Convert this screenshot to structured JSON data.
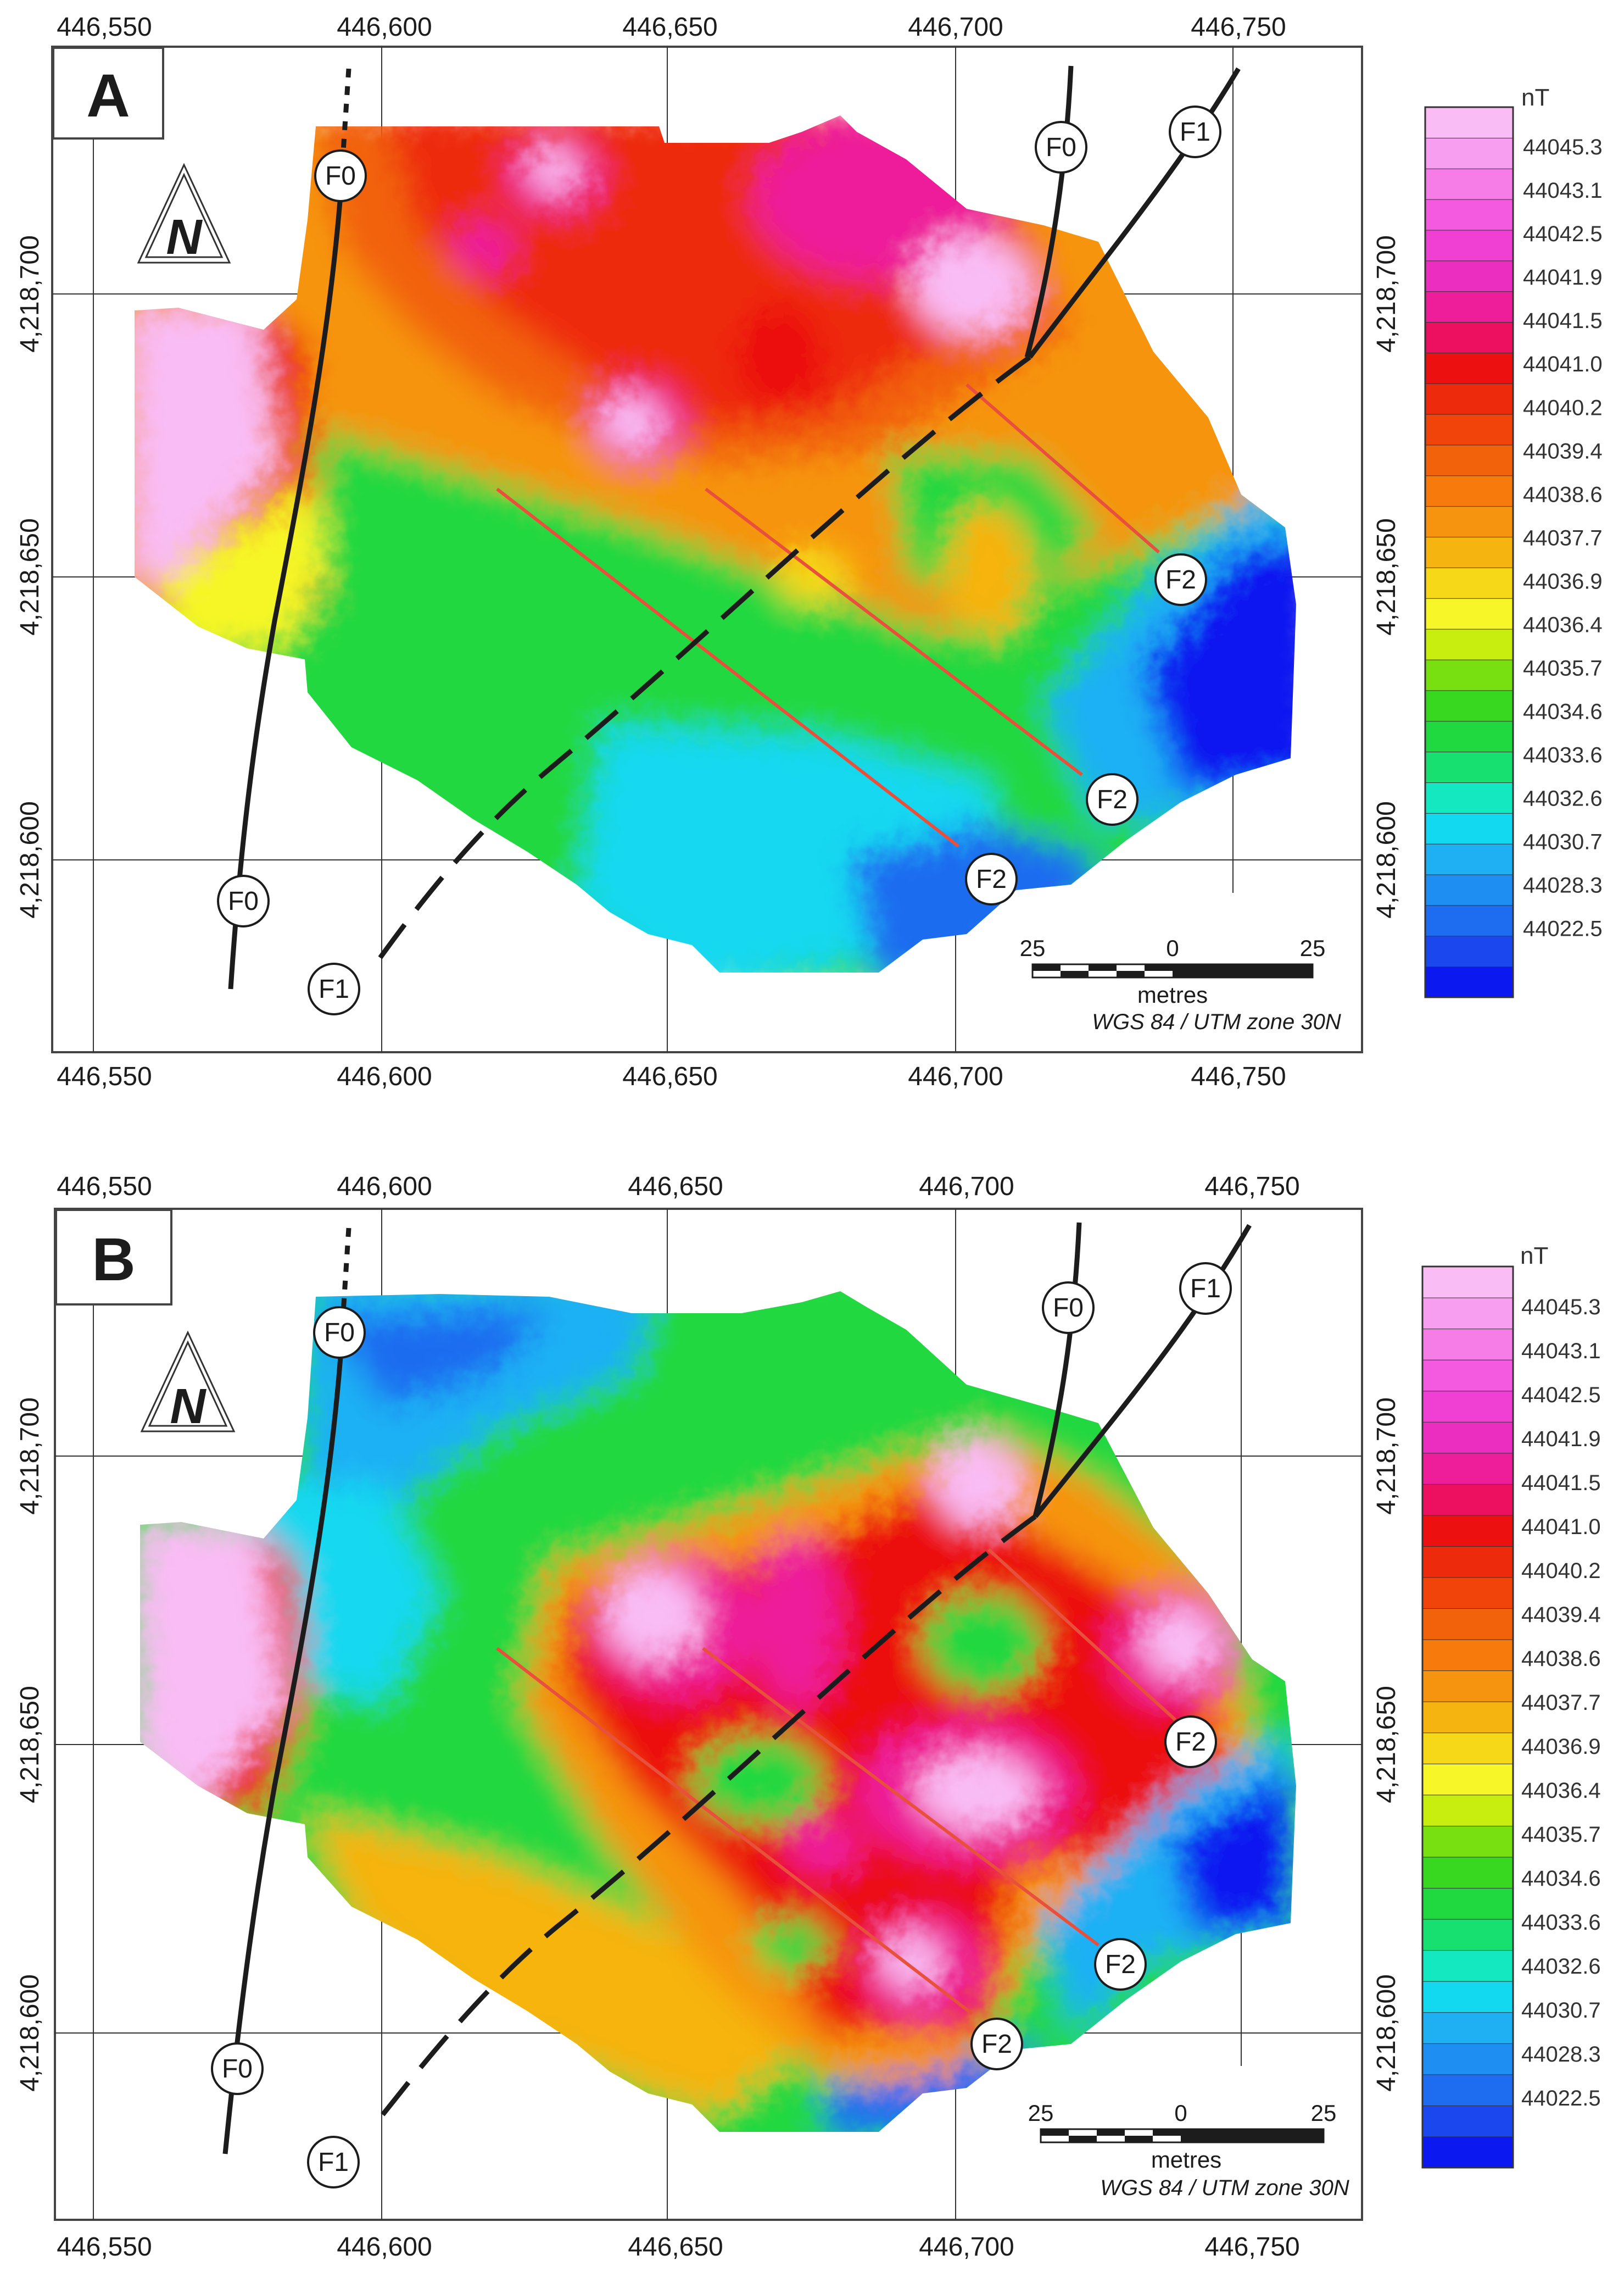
{
  "panels": [
    {
      "label": "A",
      "faults": {
        "f0_top": "F0",
        "f0_bottom": "F0",
        "f0_right": "F0",
        "f1_top": "F1",
        "f1_bottom": "F1",
        "f2_a": "F2",
        "f2_b": "F2",
        "f2_c": "F2"
      }
    },
    {
      "label": "B",
      "faults": {
        "f0_top": "F0",
        "f0_bottom": "F0",
        "f0_right": "F0",
        "f1_top": "F1",
        "f1_bottom": "F1",
        "f2_a": "F2",
        "f2_b": "F2",
        "f2_c": "F2"
      }
    }
  ],
  "north_arrow": "N",
  "x_ticks": [
    "446,550",
    "446,600",
    "446,650",
    "446,700",
    "446,750"
  ],
  "y_ticks": [
    "4,218,700",
    "4,218,650",
    "4,218,600"
  ],
  "scale_bar": {
    "left": "25",
    "mid": "0",
    "right": "25",
    "unit": "metres",
    "crs": "WGS 84 / UTM zone 30N"
  },
  "legend": {
    "unit": "nT",
    "labels": [
      "44045.3",
      "44043.1",
      "44042.5",
      "44041.9",
      "44041.5",
      "44041.0",
      "44040.2",
      "44039.4",
      "44038.6",
      "44037.7",
      "44036.9",
      "44036.4",
      "44035.7",
      "44034.6",
      "44033.6",
      "44032.6",
      "44030.7",
      "44028.3",
      "44022.5"
    ],
    "colors": [
      "#0b18f0",
      "#1a48ee",
      "#1e6cf0",
      "#1f8ef2",
      "#1fb0f4",
      "#12d8f0",
      "#14e8c0",
      "#18e070",
      "#20d840",
      "#38d820",
      "#78e010",
      "#c8ee10",
      "#f6f628",
      "#f6d818",
      "#f6b410",
      "#f69410",
      "#f67a0c",
      "#f2620a",
      "#f0440a",
      "#ee2a0c",
      "#ec1010",
      "#ee1060",
      "#ee1e9a",
      "#ec2ec0",
      "#f040d4",
      "#f45ae0",
      "#f67ce8",
      "#f89ef0",
      "#f9bcf4"
    ]
  },
  "colors": {
    "fault_line": "#1c1c1c",
    "f2_line": "#e8503c",
    "frame": "#444444"
  }
}
